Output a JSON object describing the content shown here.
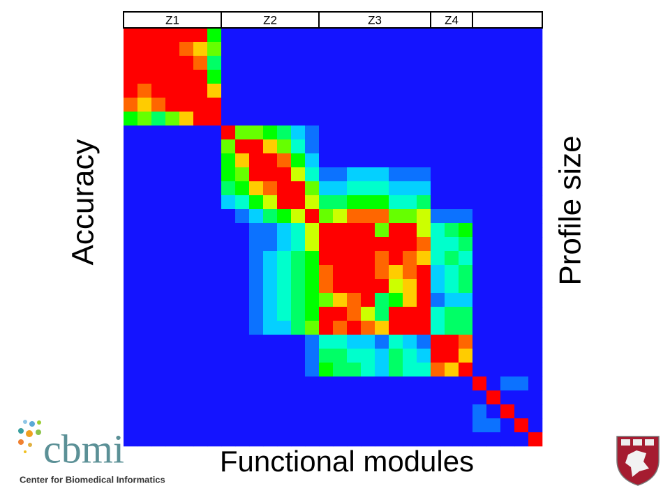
{
  "chart_data": {
    "type": "heatmap",
    "x_label": "Functional modules",
    "y_label": "Accuracy",
    "y2_label": "Profile size",
    "x_groups": [
      {
        "label": "Z1",
        "size": 7
      },
      {
        "label": "Z2",
        "size": 7
      },
      {
        "label": "Z3",
        "size": 8
      },
      {
        "label": "Z4",
        "size": 3
      },
      {
        "label": null,
        "size": 5
      }
    ],
    "vlim": [
      0,
      10
    ],
    "colormap": [
      "#1414ff",
      "#00ffff",
      "#00ff00",
      "#ffff00",
      "#ff0000"
    ],
    "values": [
      [
        10,
        10,
        10,
        10,
        10,
        10,
        5,
        0,
        0,
        0,
        0,
        0,
        0,
        0,
        0,
        0,
        0,
        0,
        0,
        0,
        0,
        0,
        0,
        0,
        0,
        0,
        0,
        0,
        0,
        0
      ],
      [
        10,
        10,
        10,
        10,
        9,
        8,
        6,
        0,
        0,
        0,
        0,
        0,
        0,
        0,
        0,
        0,
        0,
        0,
        0,
        0,
        0,
        0,
        0,
        0,
        0,
        0,
        0,
        0,
        0,
        0
      ],
      [
        10,
        10,
        10,
        10,
        10,
        9,
        4,
        0,
        0,
        0,
        0,
        0,
        0,
        0,
        0,
        0,
        0,
        0,
        0,
        0,
        0,
        0,
        0,
        0,
        0,
        0,
        0,
        0,
        0,
        0
      ],
      [
        10,
        10,
        10,
        10,
        10,
        10,
        5,
        0,
        0,
        0,
        0,
        0,
        0,
        0,
        0,
        0,
        0,
        0,
        0,
        0,
        0,
        0,
        0,
        0,
        0,
        0,
        0,
        0,
        0,
        0
      ],
      [
        10,
        9,
        10,
        10,
        10,
        10,
        8,
        0,
        0,
        0,
        0,
        0,
        0,
        0,
        0,
        0,
        0,
        0,
        0,
        0,
        0,
        0,
        0,
        0,
        0,
        0,
        0,
        0,
        0,
        0
      ],
      [
        9,
        8,
        9,
        10,
        10,
        10,
        10,
        0,
        0,
        0,
        0,
        0,
        0,
        0,
        0,
        0,
        0,
        0,
        0,
        0,
        0,
        0,
        0,
        0,
        0,
        0,
        0,
        0,
        0,
        0
      ],
      [
        5,
        6,
        4,
        6,
        8,
        10,
        10,
        0,
        0,
        0,
        0,
        0,
        0,
        0,
        0,
        0,
        0,
        0,
        0,
        0,
        0,
        0,
        0,
        0,
        0,
        0,
        0,
        0,
        0,
        0
      ],
      [
        0,
        0,
        0,
        0,
        0,
        0,
        0,
        10,
        6,
        6,
        5,
        4,
        2,
        1,
        0,
        0,
        0,
        0,
        0,
        0,
        0,
        0,
        0,
        0,
        0,
        0,
        0,
        0,
        0,
        0
      ],
      [
        0,
        0,
        0,
        0,
        0,
        0,
        0,
        6,
        10,
        10,
        8,
        6,
        3,
        1,
        0,
        0,
        0,
        0,
        0,
        0,
        0,
        0,
        0,
        0,
        0,
        0,
        0,
        0,
        0,
        0
      ],
      [
        0,
        0,
        0,
        0,
        0,
        0,
        0,
        5,
        8,
        10,
        10,
        9,
        5,
        2,
        0,
        0,
        0,
        0,
        0,
        0,
        0,
        0,
        0,
        0,
        0,
        0,
        0,
        0,
        0,
        0
      ],
      [
        0,
        0,
        0,
        0,
        0,
        0,
        0,
        5,
        6,
        10,
        10,
        10,
        7,
        3,
        1,
        1,
        2,
        2,
        2,
        1,
        1,
        1,
        0,
        0,
        0,
        0,
        0,
        0,
        0,
        0
      ],
      [
        0,
        0,
        0,
        0,
        0,
        0,
        0,
        4,
        5,
        8,
        9,
        10,
        10,
        6,
        2,
        2,
        3,
        3,
        3,
        2,
        2,
        2,
        0,
        0,
        0,
        0,
        0,
        0,
        0,
        0
      ],
      [
        0,
        0,
        0,
        0,
        0,
        0,
        0,
        2,
        3,
        5,
        7,
        10,
        10,
        7,
        4,
        4,
        5,
        5,
        5,
        3,
        3,
        4,
        0,
        0,
        0,
        0,
        0,
        0,
        0,
        0
      ],
      [
        0,
        0,
        0,
        0,
        0,
        0,
        0,
        0,
        1,
        2,
        4,
        5,
        7,
        10,
        6,
        7,
        9,
        9,
        9,
        6,
        6,
        7,
        1,
        1,
        1,
        0,
        0,
        0,
        0,
        0
      ],
      [
        0,
        0,
        0,
        0,
        0,
        0,
        0,
        0,
        0,
        1,
        1,
        2,
        3,
        7,
        10,
        10,
        10,
        10,
        6,
        10,
        10,
        7,
        3,
        4,
        5,
        0,
        0,
        0,
        0,
        0
      ],
      [
        0,
        0,
        0,
        0,
        0,
        0,
        0,
        0,
        0,
        1,
        1,
        2,
        3,
        7,
        10,
        10,
        10,
        10,
        10,
        10,
        10,
        9,
        3,
        3,
        4,
        0,
        0,
        0,
        0,
        0
      ],
      [
        0,
        0,
        0,
        0,
        0,
        0,
        0,
        0,
        0,
        1,
        2,
        3,
        4,
        5,
        10,
        10,
        10,
        10,
        9,
        10,
        9,
        8,
        3,
        4,
        3,
        0,
        0,
        0,
        0,
        0
      ],
      [
        0,
        0,
        0,
        0,
        0,
        0,
        0,
        0,
        0,
        1,
        2,
        3,
        4,
        5,
        9,
        10,
        10,
        10,
        9,
        8,
        9,
        10,
        2,
        3,
        4,
        0,
        0,
        0,
        0,
        0
      ],
      [
        0,
        0,
        0,
        0,
        0,
        0,
        0,
        0,
        0,
        1,
        2,
        3,
        4,
        5,
        9,
        10,
        10,
        10,
        10,
        7,
        8,
        10,
        2,
        3,
        4,
        0,
        0,
        0,
        0,
        0
      ],
      [
        0,
        0,
        0,
        0,
        0,
        0,
        0,
        0,
        0,
        1,
        2,
        3,
        4,
        5,
        6,
        8,
        9,
        10,
        4,
        5,
        8,
        10,
        1,
        2,
        2,
        0,
        0,
        0,
        0,
        0
      ],
      [
        0,
        0,
        0,
        0,
        0,
        0,
        0,
        0,
        0,
        1,
        2,
        3,
        4,
        5,
        10,
        10,
        9,
        7,
        4,
        10,
        10,
        10,
        3,
        4,
        4,
        0,
        0,
        0,
        0,
        0
      ],
      [
        0,
        0,
        0,
        0,
        0,
        0,
        0,
        0,
        0,
        1,
        2,
        2,
        4,
        6,
        10,
        9,
        10,
        9,
        8,
        10,
        10,
        10,
        3,
        4,
        4,
        0,
        0,
        0,
        0,
        0
      ],
      [
        0,
        0,
        0,
        0,
        0,
        0,
        0,
        0,
        0,
        0,
        0,
        0,
        0,
        1,
        3,
        3,
        2,
        2,
        1,
        3,
        2,
        1,
        10,
        10,
        9,
        0,
        0,
        0,
        0,
        0
      ],
      [
        0,
        0,
        0,
        0,
        0,
        0,
        0,
        0,
        0,
        0,
        0,
        0,
        0,
        1,
        4,
        4,
        3,
        3,
        2,
        4,
        3,
        2,
        10,
        10,
        8,
        0,
        0,
        0,
        0,
        0
      ],
      [
        0,
        0,
        0,
        0,
        0,
        0,
        0,
        0,
        0,
        0,
        0,
        0,
        0,
        1,
        5,
        4,
        4,
        3,
        2,
        4,
        3,
        3,
        9,
        8,
        10,
        0,
        0,
        0,
        0,
        0
      ],
      [
        0,
        0,
        0,
        0,
        0,
        0,
        0,
        0,
        0,
        0,
        0,
        0,
        0,
        0,
        0,
        0,
        0,
        0,
        0,
        0,
        0,
        0,
        0,
        0,
        0,
        10,
        0,
        1,
        1,
        0
      ],
      [
        0,
        0,
        0,
        0,
        0,
        0,
        0,
        0,
        0,
        0,
        0,
        0,
        0,
        0,
        0,
        0,
        0,
        0,
        0,
        0,
        0,
        0,
        0,
        0,
        0,
        0,
        10,
        0,
        0,
        0
      ],
      [
        0,
        0,
        0,
        0,
        0,
        0,
        0,
        0,
        0,
        0,
        0,
        0,
        0,
        0,
        0,
        0,
        0,
        0,
        0,
        0,
        0,
        0,
        0,
        0,
        0,
        1,
        0,
        10,
        0,
        0
      ],
      [
        0,
        0,
        0,
        0,
        0,
        0,
        0,
        0,
        0,
        0,
        0,
        0,
        0,
        0,
        0,
        0,
        0,
        0,
        0,
        0,
        0,
        0,
        0,
        0,
        0,
        1,
        1,
        0,
        10,
        0
      ],
      [
        0,
        0,
        0,
        0,
        0,
        0,
        0,
        0,
        0,
        0,
        0,
        0,
        0,
        0,
        0,
        0,
        0,
        0,
        0,
        0,
        0,
        0,
        0,
        0,
        0,
        0,
        0,
        0,
        0,
        10
      ]
    ]
  },
  "logo": {
    "name": "cbmi",
    "subtitle": "Center for Biomedical Informatics"
  }
}
